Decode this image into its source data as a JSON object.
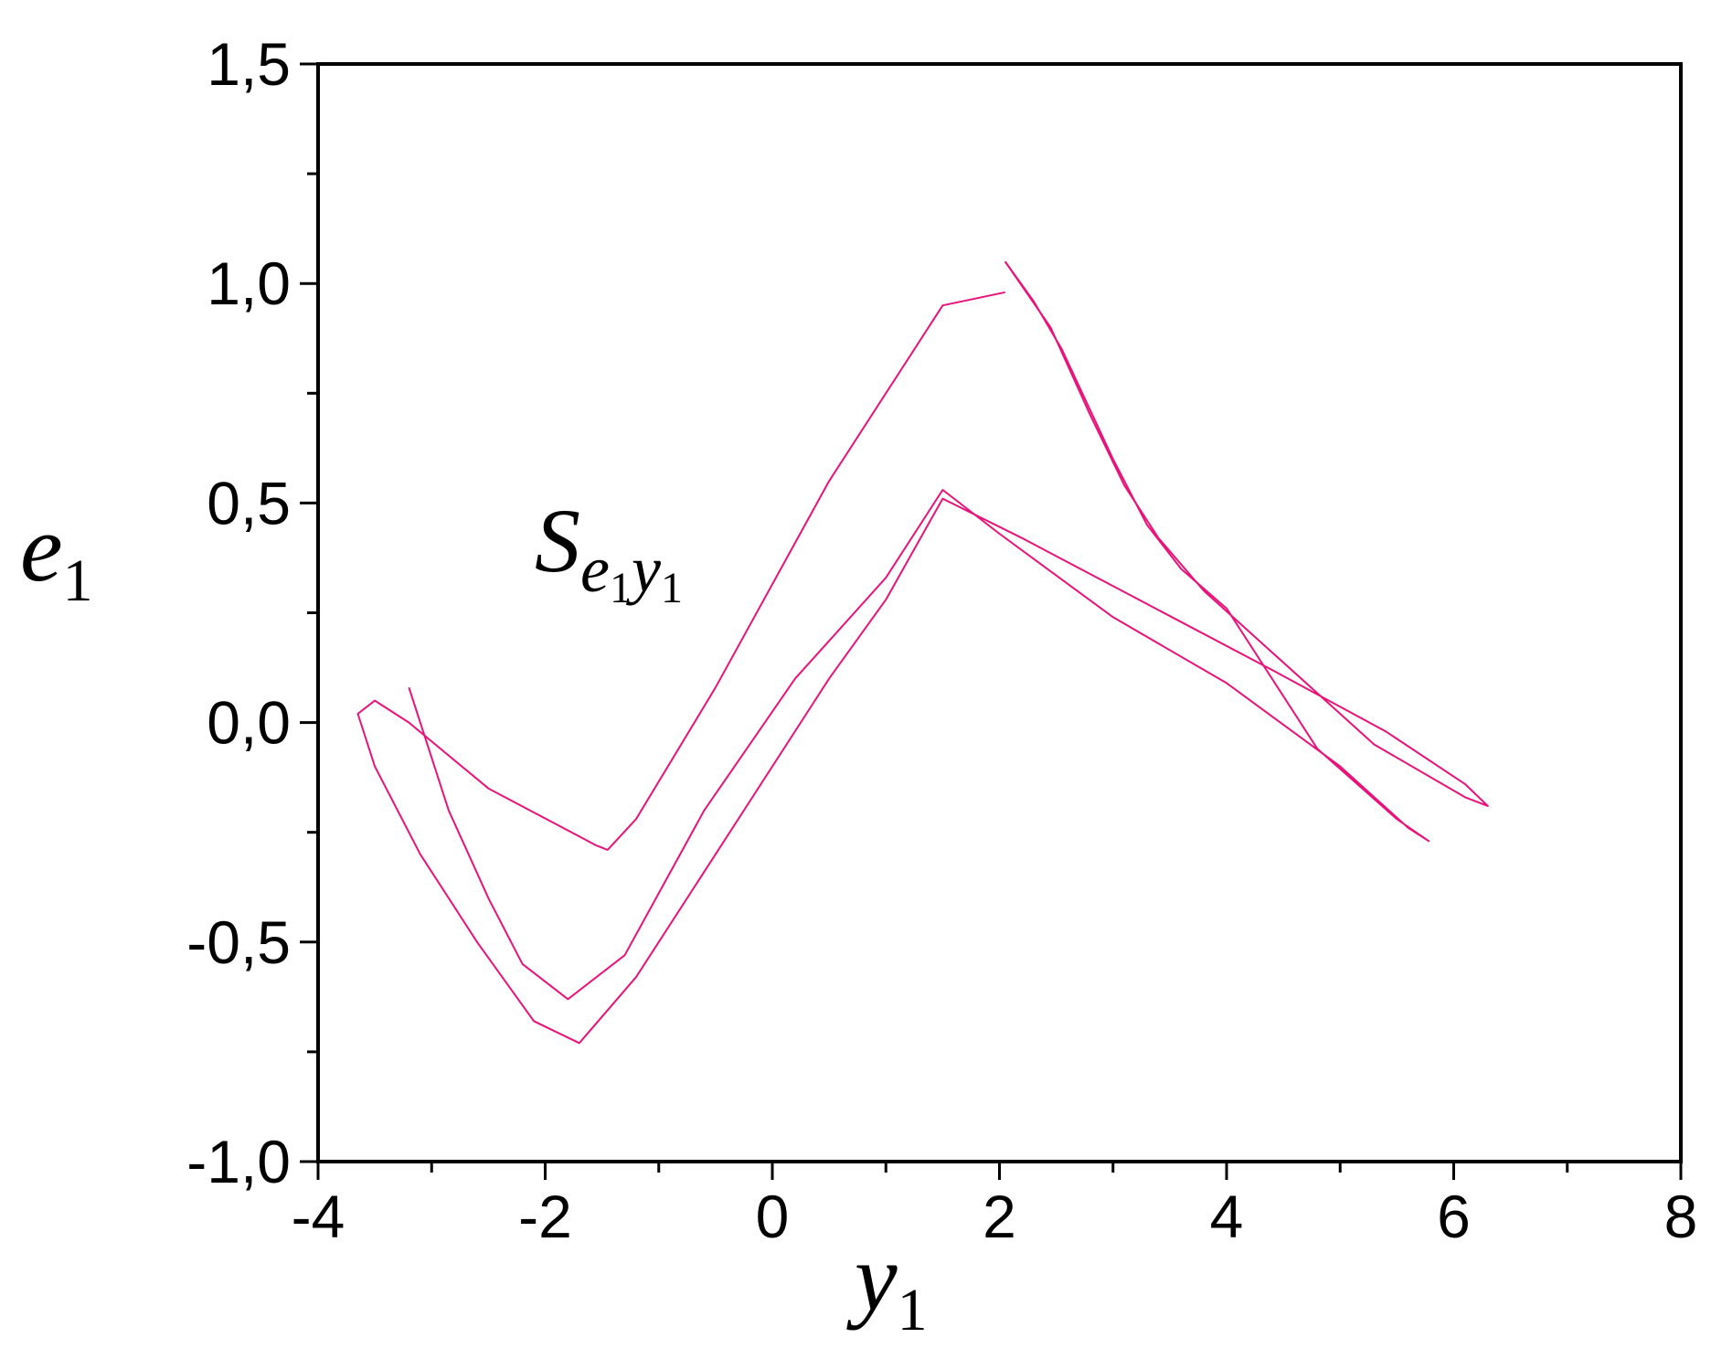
{
  "chart_data": {
    "type": "line",
    "xlabel": {
      "base": "y",
      "sub": "1"
    },
    "ylabel": {
      "base": "e",
      "sub": "1"
    },
    "annotation": {
      "base": "S",
      "sub1": "e",
      "sub1sub": "1",
      "sub2": "y",
      "sub2sub": "1"
    },
    "xlim": [
      -4,
      8
    ],
    "ylim": [
      -1.0,
      1.5
    ],
    "xticks": [
      "-4",
      "-2",
      "0",
      "2",
      "4",
      "6",
      "8"
    ],
    "xtick_values": [
      -4,
      -2,
      0,
      2,
      4,
      6,
      8
    ],
    "yticks": [
      "-1,0",
      "-0,5",
      "0,0",
      "0,5",
      "1,0",
      "1,5"
    ],
    "ytick_values": [
      -1.0,
      -0.5,
      0.0,
      0.5,
      1.0,
      1.5
    ],
    "grid": false,
    "line_color": "#e8137a",
    "series": [
      {
        "values": [
          [
            -3.2,
            0.08
          ],
          [
            -2.85,
            -0.2
          ],
          [
            -2.5,
            -0.4
          ],
          [
            -2.2,
            -0.55
          ],
          [
            -1.8,
            -0.63
          ],
          [
            -1.3,
            -0.53
          ],
          [
            -0.6,
            -0.2
          ],
          [
            0.2,
            0.1
          ],
          [
            1.0,
            0.33
          ],
          [
            1.5,
            0.53
          ],
          [
            2.0,
            0.43
          ],
          [
            3.0,
            0.24
          ],
          [
            4.0,
            0.09
          ],
          [
            5.0,
            -0.1
          ],
          [
            5.6,
            -0.24
          ],
          [
            5.78,
            -0.27
          ],
          [
            5.5,
            -0.22
          ],
          [
            4.8,
            -0.06
          ],
          [
            4.0,
            0.26
          ],
          [
            3.6,
            0.35
          ],
          [
            3.3,
            0.45
          ],
          [
            3.0,
            0.6
          ],
          [
            2.55,
            0.85
          ],
          [
            2.3,
            0.96
          ],
          [
            2.05,
            1.05
          ]
        ]
      },
      {
        "values": [
          [
            2.05,
            0.98
          ],
          [
            1.5,
            0.95
          ],
          [
            0.5,
            0.55
          ],
          [
            -0.5,
            0.08
          ],
          [
            -1.2,
            -0.22
          ],
          [
            -1.45,
            -0.29
          ],
          [
            -1.55,
            -0.28
          ],
          [
            -2.5,
            -0.15
          ],
          [
            -3.2,
            0.0
          ],
          [
            -3.5,
            0.05
          ],
          [
            -3.65,
            0.02
          ],
          [
            -3.5,
            -0.1
          ],
          [
            -3.1,
            -0.3
          ],
          [
            -2.6,
            -0.5
          ],
          [
            -2.1,
            -0.68
          ],
          [
            -1.7,
            -0.73
          ],
          [
            -1.2,
            -0.58
          ],
          [
            -0.5,
            -0.3
          ],
          [
            0.5,
            0.1
          ],
          [
            1.0,
            0.28
          ],
          [
            1.5,
            0.51
          ],
          [
            2.2,
            0.42
          ],
          [
            3.3,
            0.27
          ],
          [
            4.4,
            0.12
          ],
          [
            5.4,
            -0.02
          ],
          [
            6.1,
            -0.14
          ],
          [
            6.3,
            -0.19
          ],
          [
            6.1,
            -0.17
          ],
          [
            5.3,
            -0.05
          ],
          [
            4.4,
            0.16
          ],
          [
            3.8,
            0.3
          ],
          [
            3.4,
            0.42
          ],
          [
            3.1,
            0.54
          ],
          [
            2.8,
            0.7
          ],
          [
            2.45,
            0.9
          ],
          [
            2.05,
            1.05
          ]
        ]
      }
    ]
  }
}
